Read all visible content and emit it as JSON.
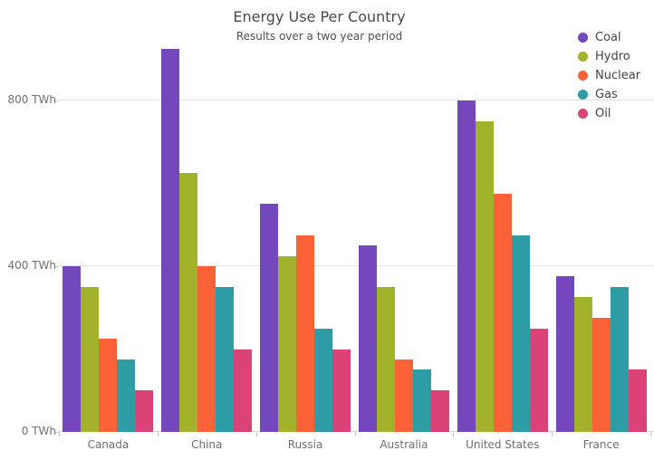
{
  "chart_data": {
    "type": "bar",
    "title": "Energy Use Per Country",
    "subtitle": "Results over a two year period",
    "categories": [
      "Canada",
      "China",
      "Russia",
      "Australia",
      "United States",
      "France"
    ],
    "series": [
      {
        "name": "Coal",
        "color": "#7447BD",
        "values": [
          400,
          925,
          550,
          450,
          800,
          375
        ]
      },
      {
        "name": "Hydro",
        "color": "#A2B32B",
        "values": [
          350,
          625,
          425,
          350,
          750,
          325
        ]
      },
      {
        "name": "Nuclear",
        "color": "#FB6238",
        "values": [
          225,
          400,
          475,
          175,
          575,
          275
        ]
      },
      {
        "name": "Gas",
        "color": "#2E9CA5",
        "values": [
          175,
          350,
          250,
          150,
          475,
          350
        ]
      },
      {
        "name": "Oil",
        "color": "#DB4278",
        "values": [
          100,
          200,
          200,
          100,
          250,
          150
        ]
      }
    ],
    "y_axis": {
      "unit": "TWh",
      "ylim": [
        0,
        955
      ],
      "ticks": [
        {
          "value": 0,
          "label": "0 TWh"
        },
        {
          "value": 400,
          "label": "400 TWh"
        },
        {
          "value": 800,
          "label": "800 TWh"
        }
      ]
    },
    "legend_position": "top-right",
    "grid": "horizontal-only"
  }
}
